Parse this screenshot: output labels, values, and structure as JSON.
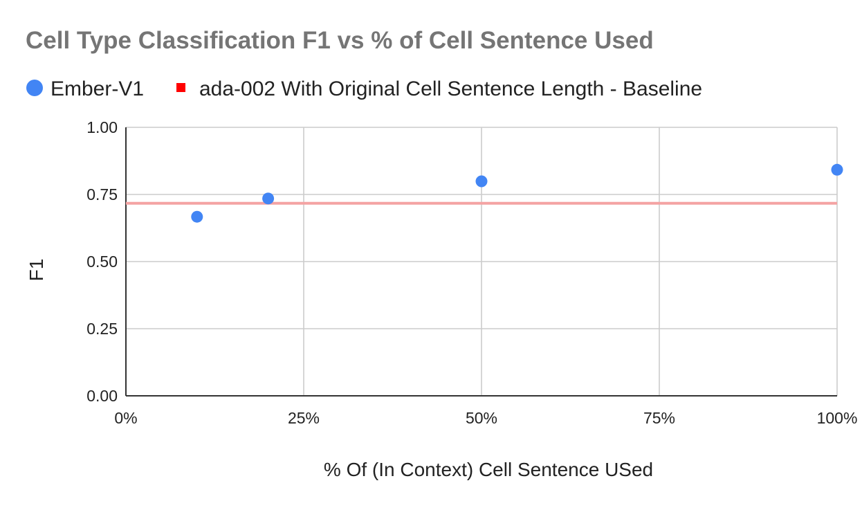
{
  "colors": {
    "series": "#4285f4",
    "baseline": "#ff0000",
    "baseline_line": "#f4a3a3",
    "grid": "#cccccc",
    "axis": "#333333",
    "title": "#757575",
    "text": "#222222"
  },
  "chart_data": {
    "type": "scatter",
    "title": "Cell Type Classification F1 vs % of Cell Sentence Used",
    "xlabel": "% Of (In Context) Cell Sentence USed",
    "ylabel": "F1",
    "xlim": [
      0,
      100
    ],
    "ylim": [
      0,
      1
    ],
    "grid": true,
    "legend_position": "top",
    "x_ticks": [
      {
        "value": 0,
        "label": "0%"
      },
      {
        "value": 25,
        "label": "25%"
      },
      {
        "value": 50,
        "label": "50%"
      },
      {
        "value": 75,
        "label": "75%"
      },
      {
        "value": 100,
        "label": "100%"
      }
    ],
    "y_ticks": [
      {
        "value": 0,
        "label": "0.00"
      },
      {
        "value": 0.25,
        "label": "0.25"
      },
      {
        "value": 0.5,
        "label": "0.50"
      },
      {
        "value": 0.75,
        "label": "0.75"
      },
      {
        "value": 1,
        "label": "1.00"
      }
    ],
    "series": [
      {
        "name": "Ember-V1",
        "type": "scatter",
        "marker": "circle",
        "color": "#4285f4",
        "points": [
          {
            "x": 10,
            "y": 0.667
          },
          {
            "x": 20,
            "y": 0.735
          },
          {
            "x": 50,
            "y": 0.799
          },
          {
            "x": 100,
            "y": 0.842
          }
        ]
      },
      {
        "name": "ada-002 With Original Cell Sentence Length - Baseline",
        "type": "horizontal-line",
        "marker": "square",
        "color": "#ff0000",
        "y": 0.717
      }
    ]
  }
}
